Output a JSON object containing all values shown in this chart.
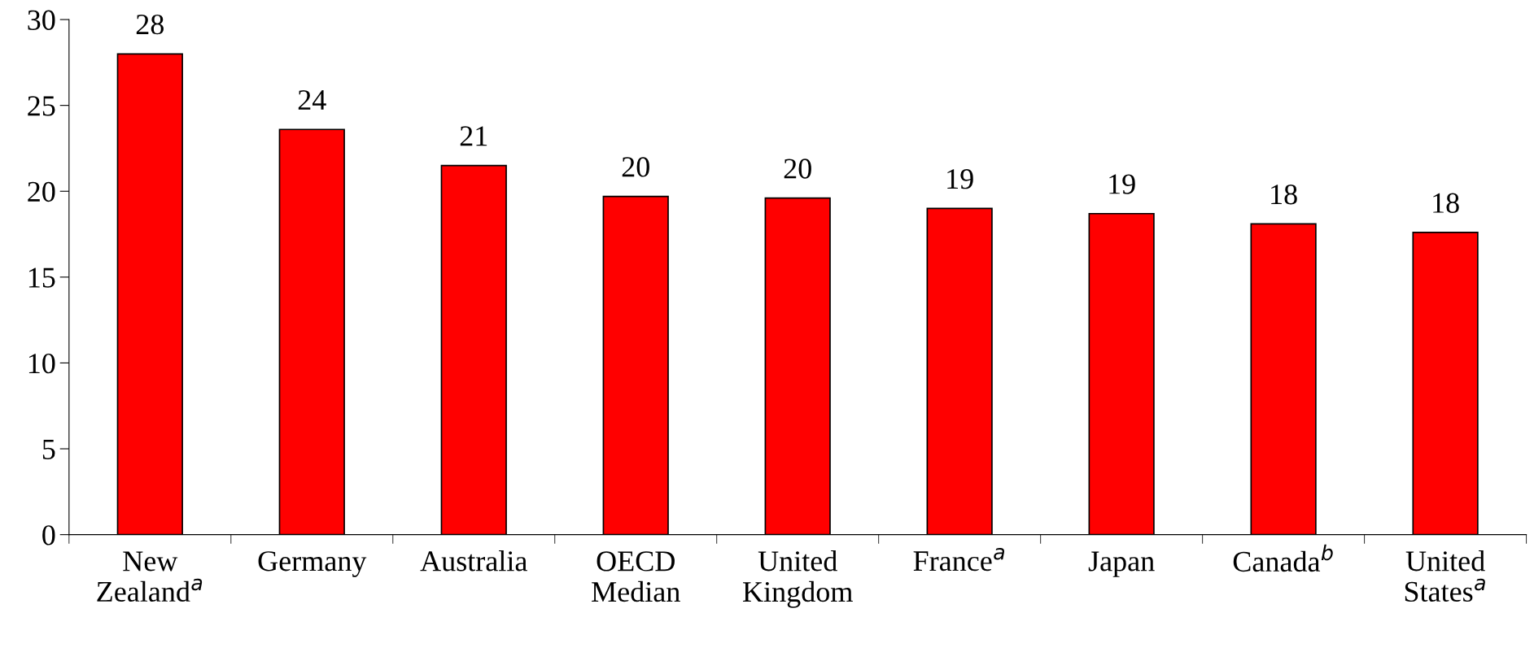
{
  "chart_data": {
    "type": "bar",
    "categories": [
      "New\nZealand$^{a}$",
      "Germany",
      "Australia",
      "OECD\nMedian",
      "United\nKingdom",
      "France$^{a}$",
      "Japan",
      "Canada$^{b}$",
      "United\nStates$^{a}$"
    ],
    "values": [
      28.0,
      23.6,
      21.5,
      19.7,
      19.6,
      19.0,
      18.7,
      18.1,
      17.6
    ],
    "value_labels": [
      "28",
      "24",
      "21",
      "20",
      "20",
      "19",
      "19",
      "18",
      "18"
    ],
    "color": "#ff0000",
    "ylim": [
      0,
      30
    ],
    "yticks": [
      0,
      5,
      10,
      15,
      20,
      25,
      30
    ],
    "grid": false,
    "legend": false
  }
}
